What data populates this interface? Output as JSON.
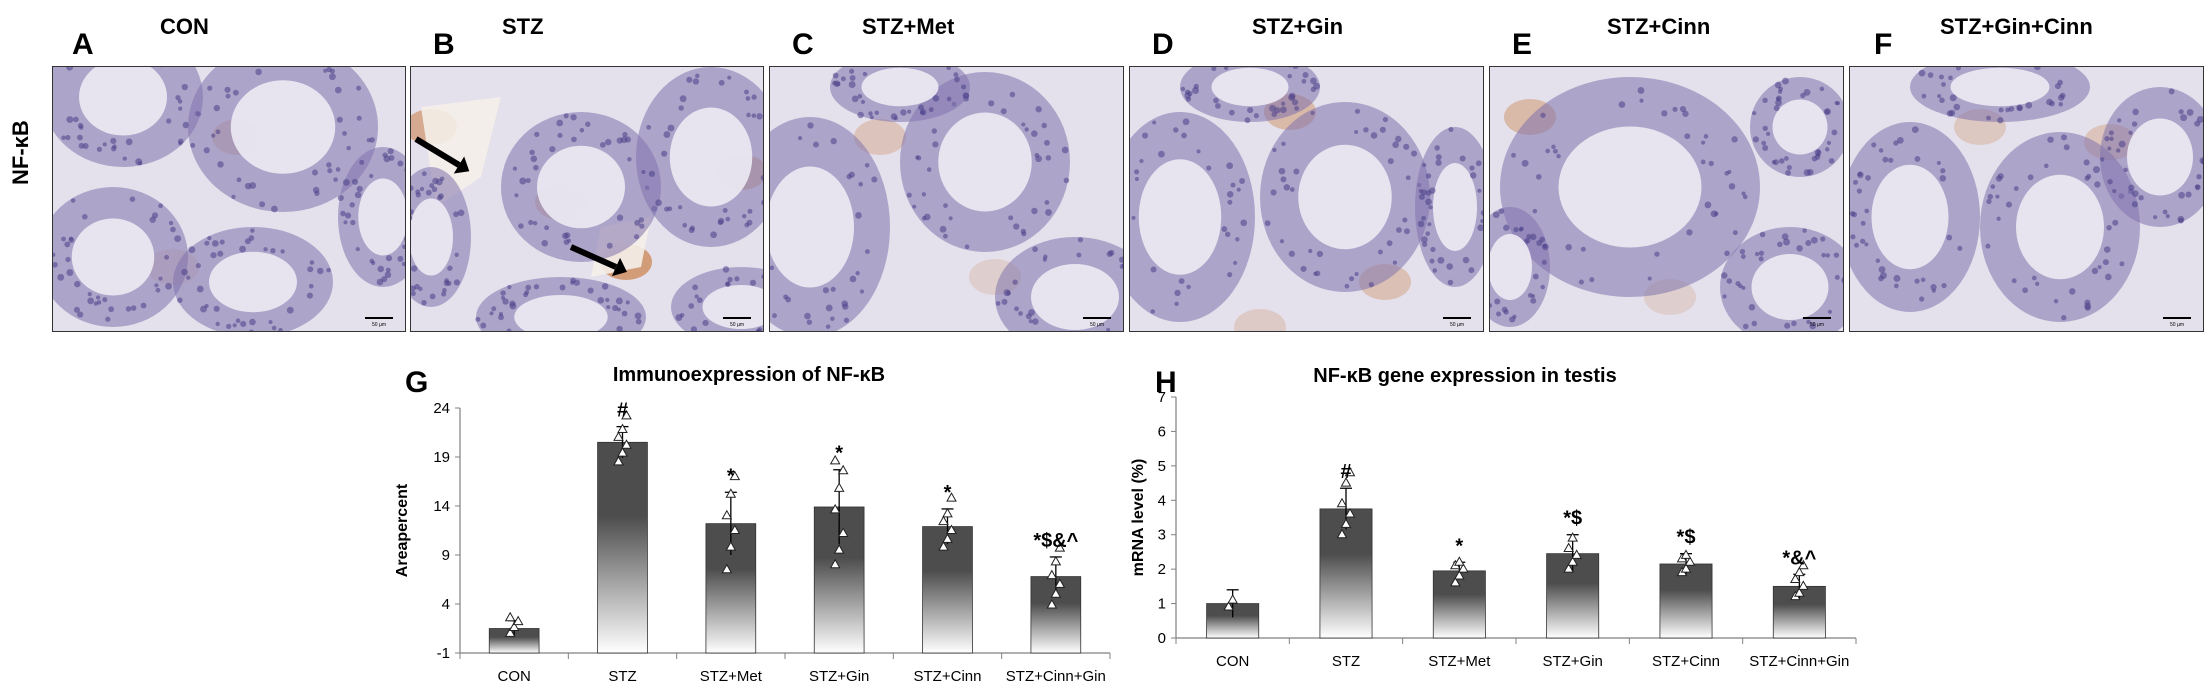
{
  "figure": {
    "row_label": "NF-κB",
    "panels": [
      {
        "letter": "A",
        "title": "CON",
        "scale": "50 µm"
      },
      {
        "letter": "B",
        "title": "STZ",
        "scale": "50 µm"
      },
      {
        "letter": "C",
        "title": "STZ+Met",
        "scale": "50 µm"
      },
      {
        "letter": "D",
        "title": "STZ+Gin",
        "scale": "50 µm"
      },
      {
        "letter": "E",
        "title": "STZ+Cinn",
        "scale": "50 µm"
      },
      {
        "letter": "F",
        "title": "STZ+Gin+Cinn",
        "scale": "50 µm"
      }
    ]
  },
  "colors": {
    "bar_top": "#4d4d4d",
    "bar_bottom": "#ffffff",
    "tissue_bg": "#e4e0ec",
    "tubule": "#7f73ad",
    "stain": "#c87a3c"
  },
  "chart_data": [
    {
      "panel_letter": "G",
      "type": "bar",
      "title": "Immunoexpression of NF-κB",
      "xlabel": "",
      "ylabel": "Areapercent",
      "categories": [
        "CON",
        "STZ",
        "STZ+Met",
        "STZ+Gin",
        "STZ+Cinn",
        "STZ+Cinn+Gin"
      ],
      "values": [
        1.5,
        20.5,
        12.2,
        13.9,
        11.9,
        6.8
      ],
      "errors": [
        0.8,
        1.6,
        3.2,
        3.8,
        1.8,
        2.0
      ],
      "annotations": [
        "",
        "#",
        "*",
        "*",
        "*",
        "*$&^"
      ],
      "points": [
        [
          1.0,
          1.6,
          2.2,
          2.6
        ],
        [
          18.5,
          19.4,
          20.2,
          21.0,
          21.8,
          23.2
        ],
        [
          7.5,
          9.8,
          11.5,
          13.0,
          15.2,
          17.0
        ],
        [
          8.0,
          9.5,
          11.2,
          13.6,
          15.8,
          17.6,
          18.6
        ],
        [
          9.8,
          10.6,
          11.5,
          12.4,
          13.2,
          14.8
        ],
        [
          3.9,
          5.0,
          6.0,
          6.9,
          8.3,
          9.7
        ]
      ],
      "ylim": [
        -1,
        24
      ],
      "yticks": [
        -1,
        4,
        9,
        14,
        19,
        24
      ],
      "grid": false
    },
    {
      "panel_letter": "H",
      "type": "bar",
      "title": "NF-κB gene expression in testis",
      "xlabel": "",
      "ylabel": "mRNA level (%)",
      "categories": [
        "CON",
        "STZ",
        "STZ+Met",
        "STZ+Gin",
        "STZ+Cinn",
        "STZ+Cinn+Gin"
      ],
      "values": [
        1.0,
        3.75,
        1.95,
        2.45,
        2.15,
        1.5
      ],
      "errors": [
        0.4,
        0.6,
        0.25,
        0.55,
        0.3,
        0.35
      ],
      "annotations": [
        "",
        "#",
        "*",
        "*$",
        "*$",
        "*&^"
      ],
      "points": [
        [
          0.9,
          1.1
        ],
        [
          3.0,
          3.3,
          3.6,
          3.9,
          4.5,
          4.8
        ],
        [
          1.6,
          1.8,
          2.0,
          2.1,
          2.2
        ],
        [
          2.0,
          2.2,
          2.4,
          2.6,
          2.9
        ],
        [
          1.9,
          2.0,
          2.2,
          2.3,
          2.4
        ],
        [
          1.2,
          1.3,
          1.5,
          1.7,
          1.9,
          2.1
        ]
      ],
      "ylim": [
        0,
        7
      ],
      "yticks": [
        0,
        1,
        2,
        3,
        4,
        5,
        6,
        7
      ],
      "grid": false
    }
  ]
}
